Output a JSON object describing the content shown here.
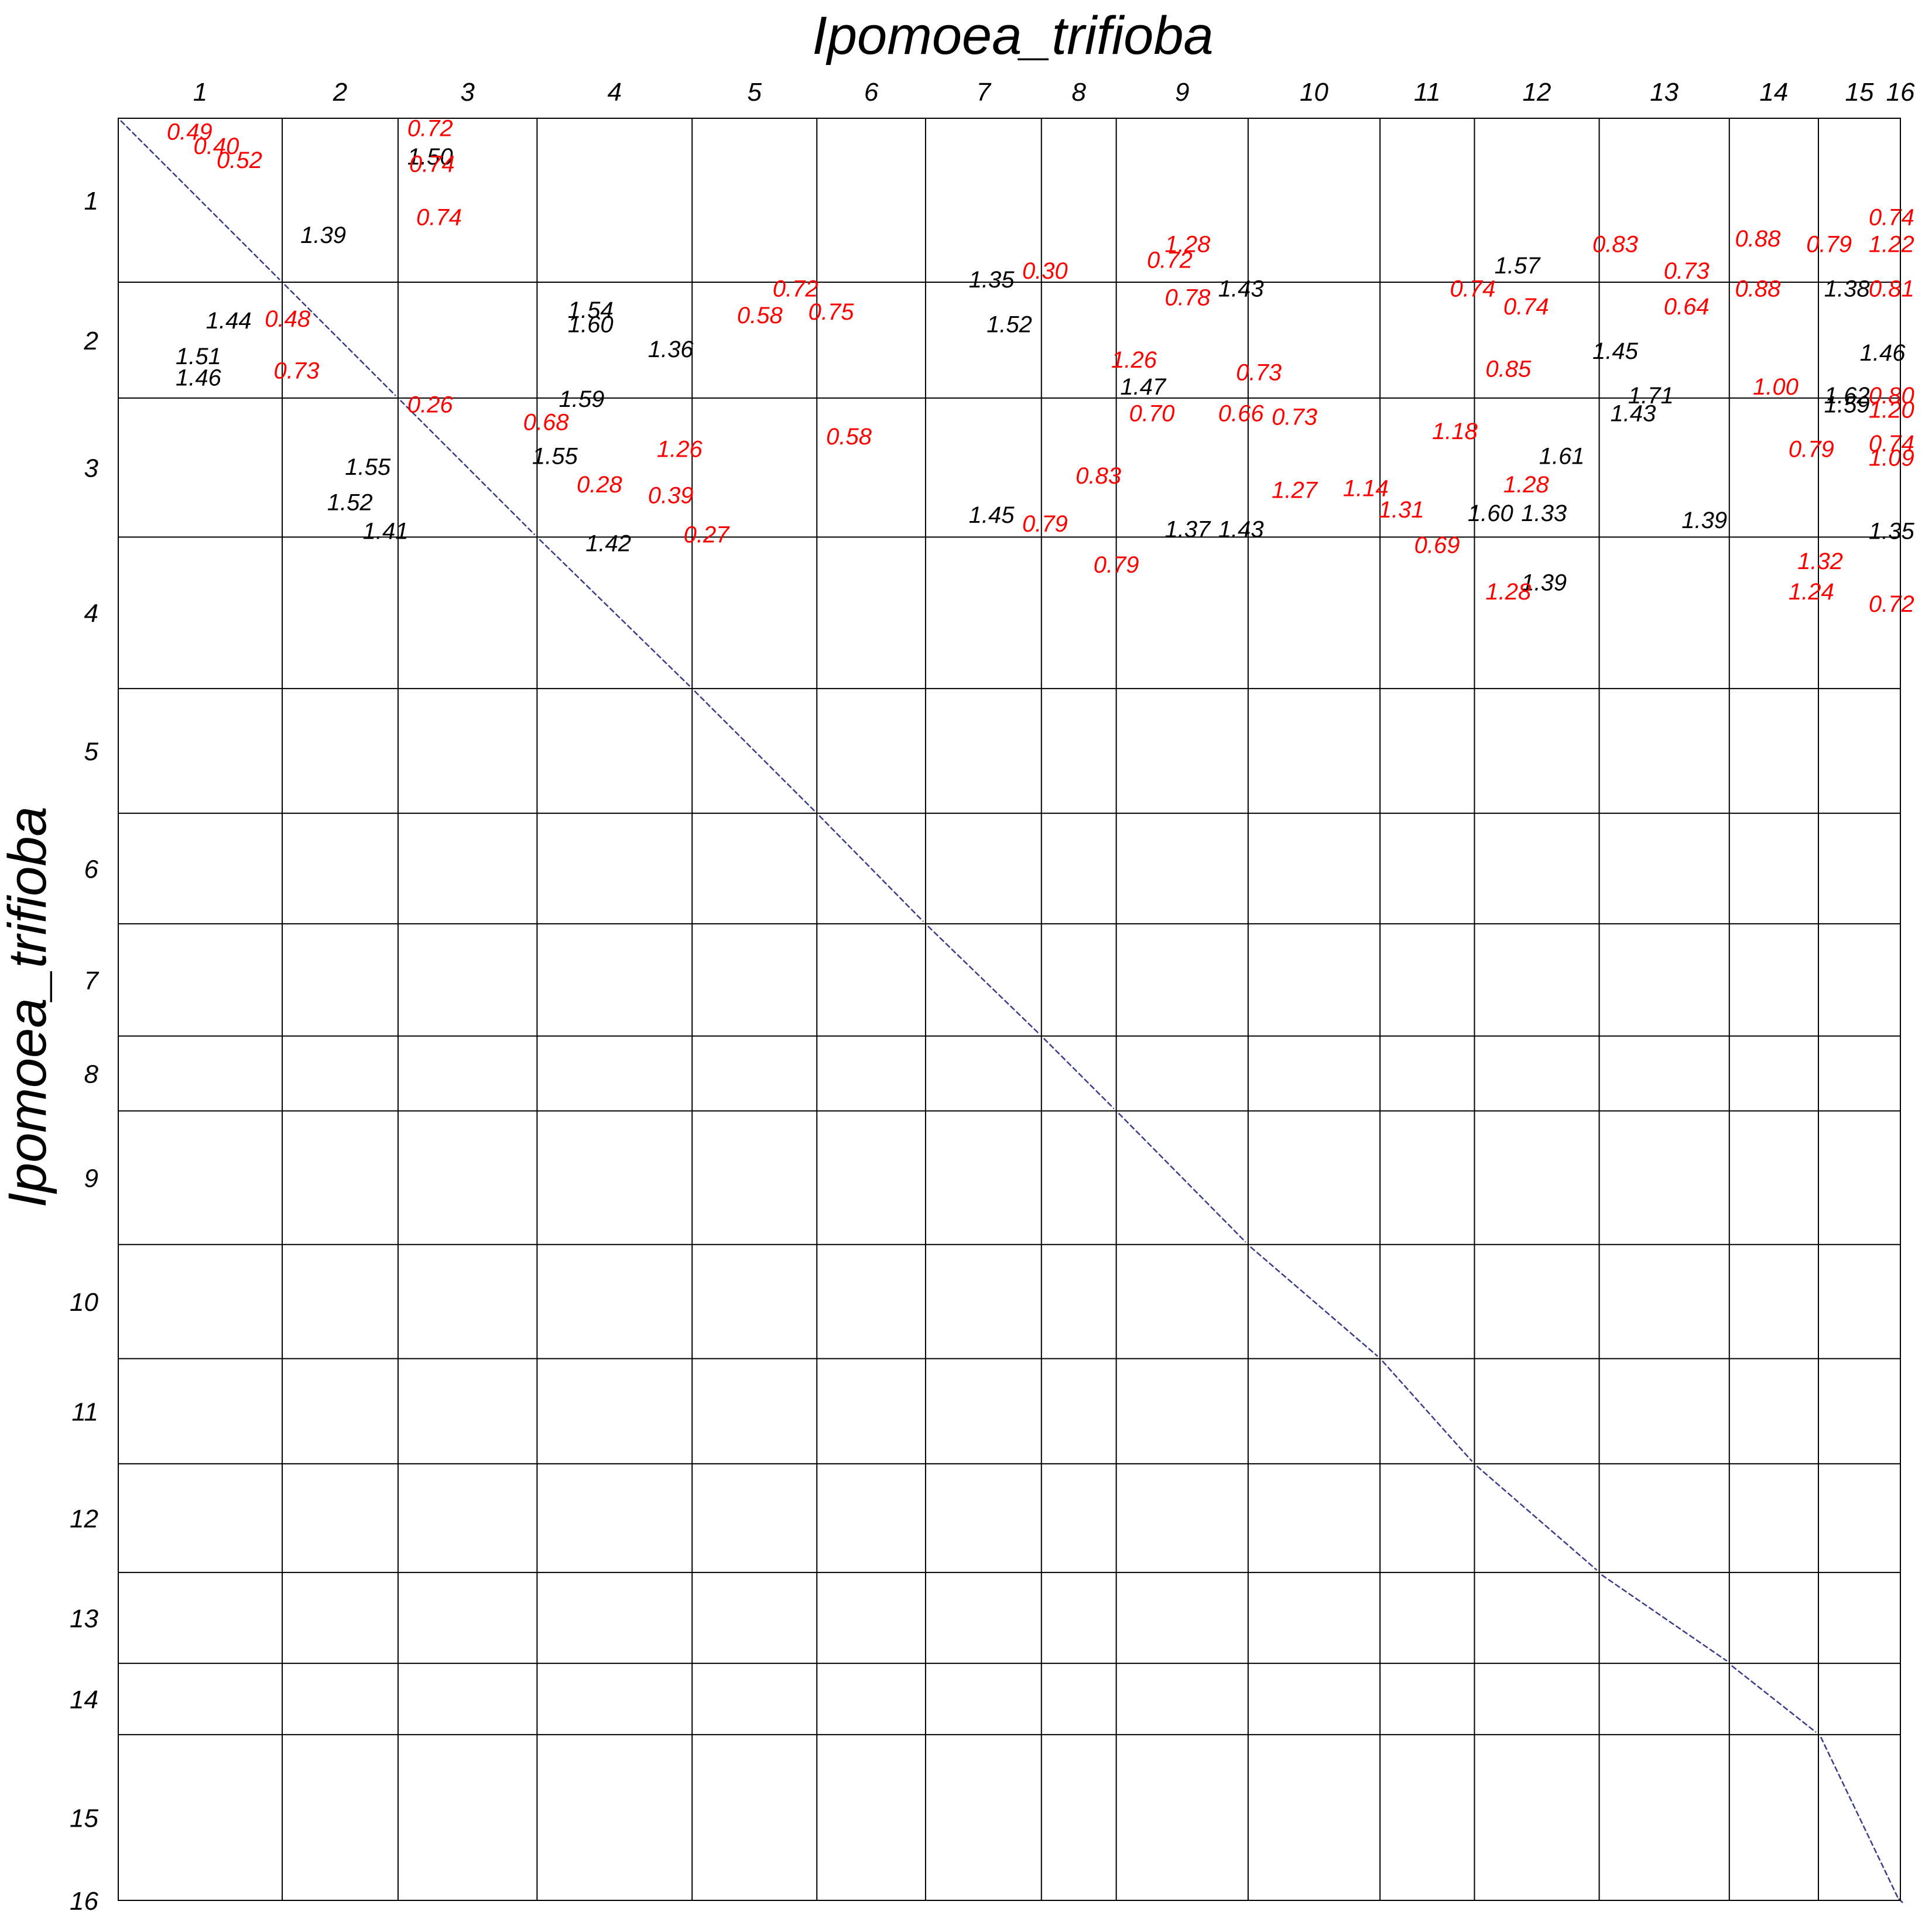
{
  "chart_data": {
    "type": "dotplot",
    "title": "Ipomoea_trifioba",
    "xlabel": "",
    "ylabel": "Ipomoea_trifioba",
    "x_ticks": [
      "1",
      "2",
      "3",
      "4",
      "5",
      "6",
      "7",
      "8",
      "9",
      "10",
      "11",
      "12",
      "13",
      "14",
      "15",
      "16"
    ],
    "y_ticks": [
      "1",
      "2",
      "3",
      "4",
      "5",
      "6",
      "7",
      "8",
      "9",
      "10",
      "11",
      "12",
      "13",
      "14",
      "15",
      "16"
    ],
    "chromosome_bounds": [
      0,
      0.092,
      0.157,
      0.235,
      0.322,
      0.392,
      0.453,
      0.518,
      0.56,
      0.634,
      0.708,
      0.761,
      0.831,
      0.904,
      0.954,
      1.0
    ],
    "y_bounds": [
      0,
      0.092,
      0.157,
      0.235,
      0.32,
      0.39,
      0.452,
      0.515,
      0.557,
      0.632,
      0.696,
      0.755,
      0.816,
      0.867,
      0.907,
      1.0
    ],
    "ks_labels": [
      {
        "x": 0.04,
        "y": 0.012,
        "value": "0.49",
        "kind": "red"
      },
      {
        "x": 0.055,
        "y": 0.02,
        "value": "0.40",
        "kind": "red"
      },
      {
        "x": 0.068,
        "y": 0.028,
        "value": "0.52",
        "kind": "red"
      },
      {
        "x": 0.115,
        "y": 0.07,
        "value": "1.39",
        "kind": "black"
      },
      {
        "x": 0.062,
        "y": 0.118,
        "value": "1.44",
        "kind": "black"
      },
      {
        "x": 0.095,
        "y": 0.117,
        "value": "0.48",
        "kind": "red"
      },
      {
        "x": 0.175,
        "y": 0.01,
        "value": "0.72",
        "kind": "red"
      },
      {
        "x": 0.175,
        "y": 0.026,
        "value": "1.50",
        "kind": "black"
      },
      {
        "x": 0.176,
        "y": 0.03,
        "value": "0.74",
        "kind": "red"
      },
      {
        "x": 0.18,
        "y": 0.06,
        "value": "0.74",
        "kind": "red"
      },
      {
        "x": 0.265,
        "y": 0.112,
        "value": "1.54",
        "kind": "black"
      },
      {
        "x": 0.265,
        "y": 0.12,
        "value": "1.60",
        "kind": "black"
      },
      {
        "x": 0.31,
        "y": 0.134,
        "value": "1.36",
        "kind": "black"
      },
      {
        "x": 0.045,
        "y": 0.15,
        "value": "1.46",
        "kind": "black"
      },
      {
        "x": 0.045,
        "y": 0.138,
        "value": "1.51",
        "kind": "black"
      },
      {
        "x": 0.1,
        "y": 0.146,
        "value": "0.73",
        "kind": "red"
      },
      {
        "x": 0.175,
        "y": 0.165,
        "value": "0.26",
        "kind": "red"
      },
      {
        "x": 0.24,
        "y": 0.175,
        "value": "0.68",
        "kind": "red"
      },
      {
        "x": 0.26,
        "y": 0.162,
        "value": "1.59",
        "kind": "black"
      },
      {
        "x": 0.245,
        "y": 0.194,
        "value": "1.55",
        "kind": "black"
      },
      {
        "x": 0.27,
        "y": 0.21,
        "value": "0.28",
        "kind": "red"
      },
      {
        "x": 0.31,
        "y": 0.216,
        "value": "0.39",
        "kind": "red"
      },
      {
        "x": 0.315,
        "y": 0.19,
        "value": "1.26",
        "kind": "red"
      },
      {
        "x": 0.33,
        "y": 0.238,
        "value": "0.27",
        "kind": "red"
      },
      {
        "x": 0.275,
        "y": 0.243,
        "value": "1.42",
        "kind": "black"
      },
      {
        "x": 0.14,
        "y": 0.2,
        "value": "1.55",
        "kind": "black"
      },
      {
        "x": 0.13,
        "y": 0.22,
        "value": "1.52",
        "kind": "black"
      },
      {
        "x": 0.15,
        "y": 0.236,
        "value": "1.41",
        "kind": "black"
      },
      {
        "x": 0.38,
        "y": 0.1,
        "value": "0.72",
        "kind": "red"
      },
      {
        "x": 0.36,
        "y": 0.115,
        "value": "0.58",
        "kind": "red"
      },
      {
        "x": 0.4,
        "y": 0.113,
        "value": "0.75",
        "kind": "red"
      },
      {
        "x": 0.49,
        "y": 0.095,
        "value": "1.35",
        "kind": "black"
      },
      {
        "x": 0.5,
        "y": 0.12,
        "value": "1.52",
        "kind": "black"
      },
      {
        "x": 0.52,
        "y": 0.09,
        "value": "0.30",
        "kind": "red"
      },
      {
        "x": 0.41,
        "y": 0.183,
        "value": "0.58",
        "kind": "red"
      },
      {
        "x": 0.6,
        "y": 0.105,
        "value": "0.78",
        "kind": "red"
      },
      {
        "x": 0.63,
        "y": 0.1,
        "value": "1.43",
        "kind": "black"
      },
      {
        "x": 0.6,
        "y": 0.075,
        "value": "1.28",
        "kind": "red"
      },
      {
        "x": 0.59,
        "y": 0.084,
        "value": "0.72",
        "kind": "red"
      },
      {
        "x": 0.57,
        "y": 0.14,
        "value": "1.26",
        "kind": "red"
      },
      {
        "x": 0.575,
        "y": 0.155,
        "value": "1.47",
        "kind": "black"
      },
      {
        "x": 0.58,
        "y": 0.17,
        "value": "0.70",
        "kind": "red"
      },
      {
        "x": 0.63,
        "y": 0.17,
        "value": "0.66",
        "kind": "red"
      },
      {
        "x": 0.64,
        "y": 0.147,
        "value": "0.73",
        "kind": "red"
      },
      {
        "x": 0.66,
        "y": 0.172,
        "value": "0.73",
        "kind": "red"
      },
      {
        "x": 0.55,
        "y": 0.205,
        "value": "0.83",
        "kind": "red"
      },
      {
        "x": 0.52,
        "y": 0.232,
        "value": "0.79",
        "kind": "red"
      },
      {
        "x": 0.56,
        "y": 0.255,
        "value": "0.79",
        "kind": "red"
      },
      {
        "x": 0.49,
        "y": 0.227,
        "value": "1.45",
        "kind": "black"
      },
      {
        "x": 0.6,
        "y": 0.235,
        "value": "1.37",
        "kind": "black"
      },
      {
        "x": 0.63,
        "y": 0.235,
        "value": "1.43",
        "kind": "black"
      },
      {
        "x": 0.66,
        "y": 0.213,
        "value": "1.27",
        "kind": "red"
      },
      {
        "x": 0.7,
        "y": 0.212,
        "value": "1.14",
        "kind": "red"
      },
      {
        "x": 0.72,
        "y": 0.224,
        "value": "1.31",
        "kind": "red"
      },
      {
        "x": 0.74,
        "y": 0.244,
        "value": "0.69",
        "kind": "red"
      },
      {
        "x": 0.76,
        "y": 0.1,
        "value": "0.74",
        "kind": "red"
      },
      {
        "x": 0.785,
        "y": 0.087,
        "value": "1.57",
        "kind": "black"
      },
      {
        "x": 0.79,
        "y": 0.11,
        "value": "0.74",
        "kind": "red"
      },
      {
        "x": 0.78,
        "y": 0.145,
        "value": "0.85",
        "kind": "red"
      },
      {
        "x": 0.75,
        "y": 0.18,
        "value": "1.18",
        "kind": "red"
      },
      {
        "x": 0.81,
        "y": 0.194,
        "value": "1.61",
        "kind": "black"
      },
      {
        "x": 0.79,
        "y": 0.21,
        "value": "1.28",
        "kind": "red"
      },
      {
        "x": 0.8,
        "y": 0.226,
        "value": "1.33",
        "kind": "black"
      },
      {
        "x": 0.77,
        "y": 0.226,
        "value": "1.60",
        "kind": "black"
      },
      {
        "x": 0.84,
        "y": 0.075,
        "value": "0.83",
        "kind": "red"
      },
      {
        "x": 0.88,
        "y": 0.09,
        "value": "0.73",
        "kind": "red"
      },
      {
        "x": 0.88,
        "y": 0.11,
        "value": "0.64",
        "kind": "red"
      },
      {
        "x": 0.84,
        "y": 0.135,
        "value": "1.45",
        "kind": "black"
      },
      {
        "x": 0.85,
        "y": 0.17,
        "value": "1.43",
        "kind": "black"
      },
      {
        "x": 0.86,
        "y": 0.16,
        "value": "1.71",
        "kind": "black"
      },
      {
        "x": 0.89,
        "y": 0.23,
        "value": "1.39",
        "kind": "black"
      },
      {
        "x": 0.8,
        "y": 0.265,
        "value": "1.39",
        "kind": "black"
      },
      {
        "x": 0.78,
        "y": 0.27,
        "value": "1.28",
        "kind": "red"
      },
      {
        "x": 0.92,
        "y": 0.072,
        "value": "0.88",
        "kind": "red"
      },
      {
        "x": 0.92,
        "y": 0.1,
        "value": "0.88",
        "kind": "red"
      },
      {
        "x": 0.97,
        "y": 0.1,
        "value": "1.38",
        "kind": "black"
      },
      {
        "x": 0.96,
        "y": 0.075,
        "value": "0.79",
        "kind": "red"
      },
      {
        "x": 1.0,
        "y": 0.075,
        "value": "1.22",
        "kind": "red"
      },
      {
        "x": 1.01,
        "y": 0.06,
        "value": "0.74",
        "kind": "red"
      },
      {
        "x": 1.0,
        "y": 0.1,
        "value": "0.81",
        "kind": "red"
      },
      {
        "x": 0.99,
        "y": 0.136,
        "value": "1.46",
        "kind": "black"
      },
      {
        "x": 0.93,
        "y": 0.155,
        "value": "1.00",
        "kind": "red"
      },
      {
        "x": 0.97,
        "y": 0.16,
        "value": "1.62",
        "kind": "black"
      },
      {
        "x": 0.97,
        "y": 0.165,
        "value": "1.59",
        "kind": "black"
      },
      {
        "x": 1.0,
        "y": 0.16,
        "value": "0.80",
        "kind": "red"
      },
      {
        "x": 1.0,
        "y": 0.168,
        "value": "1.20",
        "kind": "red"
      },
      {
        "x": 0.95,
        "y": 0.19,
        "value": "0.79",
        "kind": "red"
      },
      {
        "x": 1.03,
        "y": 0.195,
        "value": "1.09",
        "kind": "red"
      },
      {
        "x": 1.03,
        "y": 0.187,
        "value": "0.74",
        "kind": "red"
      },
      {
        "x": 1.02,
        "y": 0.236,
        "value": "1.35",
        "kind": "black"
      },
      {
        "x": 0.955,
        "y": 0.253,
        "value": "1.32",
        "kind": "red"
      },
      {
        "x": 0.95,
        "y": 0.27,
        "value": "1.24",
        "kind": "red"
      },
      {
        "x": 1.015,
        "y": 0.277,
        "value": "0.72",
        "kind": "red"
      }
    ]
  }
}
